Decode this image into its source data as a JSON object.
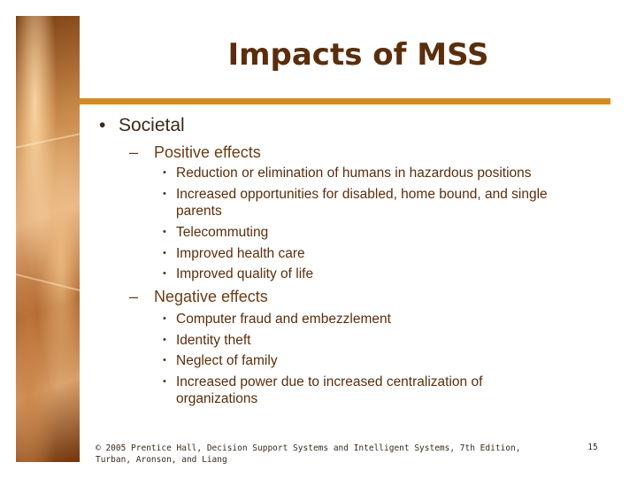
{
  "slide": {
    "title": "Impacts of MSS",
    "level1": {
      "bullet": "•",
      "text": "Societal"
    },
    "positive": {
      "dash": "–",
      "heading": "Positive effects",
      "items": [
        "Reduction or elimination of humans in hazardous positions",
        "Increased opportunities for disabled, home bound, and single parents",
        "Telecommuting",
        "Improved health care",
        "Improved quality of life"
      ]
    },
    "negative": {
      "dash": "–",
      "heading": "Negative effects",
      "items": [
        "Computer fraud and embezzlement",
        "Identity theft",
        "Neglect of family",
        "Increased power due to increased centralization of organizations"
      ]
    },
    "sub_bullet": "•",
    "footer": "© 2005 Prentice Hall, Decision Support Systems and Intelligent Systems, 7th Edition, Turban, Aronson, and Liang",
    "page_number": "15",
    "colors": {
      "accent_rule": "#d98a1f",
      "title": "#5a2e0c"
    },
    "decorative_image": "warm-abstract-side-image"
  }
}
